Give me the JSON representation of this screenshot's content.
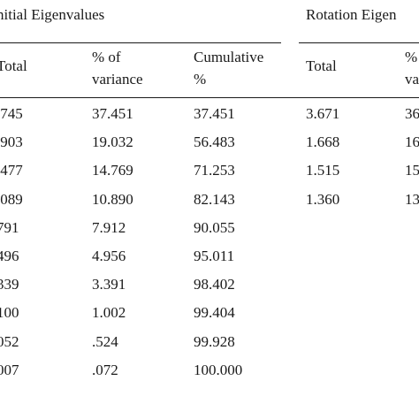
{
  "table": {
    "group_headers": {
      "initial": "nitial Eigenvalues",
      "rotation": "Rotation Eigen"
    },
    "column_headers": {
      "total": "Total",
      "pct_line1": "% of",
      "pct_line2": "variance",
      "cum_line1": "Cumulative",
      "cum_line2": "%",
      "rot_total": "Total",
      "rot_pct_line1": "%",
      "rot_pct_line2": "va"
    },
    "rows": [
      {
        "total": ".745",
        "pct": "37.451",
        "cum": "37.451",
        "rot_total": "3.671",
        "rot_pct": "36"
      },
      {
        "total": ".903",
        "pct": "19.032",
        "cum": "56.483",
        "rot_total": "1.668",
        "rot_pct": "16"
      },
      {
        "total": ".477",
        "pct": "14.769",
        "cum": "71.253",
        "rot_total": "1.515",
        "rot_pct": "15"
      },
      {
        "total": ".089",
        "pct": "10.890",
        "cum": "82.143",
        "rot_total": "1.360",
        "rot_pct": "13"
      },
      {
        "total": "791",
        "pct": "7.912",
        "cum": "90.055",
        "rot_total": "",
        "rot_pct": ""
      },
      {
        "total": "496",
        "pct": "4.956",
        "cum": "95.011",
        "rot_total": "",
        "rot_pct": ""
      },
      {
        "total": "339",
        "pct": "3.391",
        "cum": "98.402",
        "rot_total": "",
        "rot_pct": ""
      },
      {
        "total": "100",
        "pct": "1.002",
        "cum": "99.404",
        "rot_total": "",
        "rot_pct": ""
      },
      {
        "total": "052",
        "pct": ".524",
        "cum": "99.928",
        "rot_total": "",
        "rot_pct": ""
      },
      {
        "total": "007",
        "pct": ".072",
        "cum": "100.000",
        "rot_total": "",
        "rot_pct": ""
      }
    ]
  }
}
